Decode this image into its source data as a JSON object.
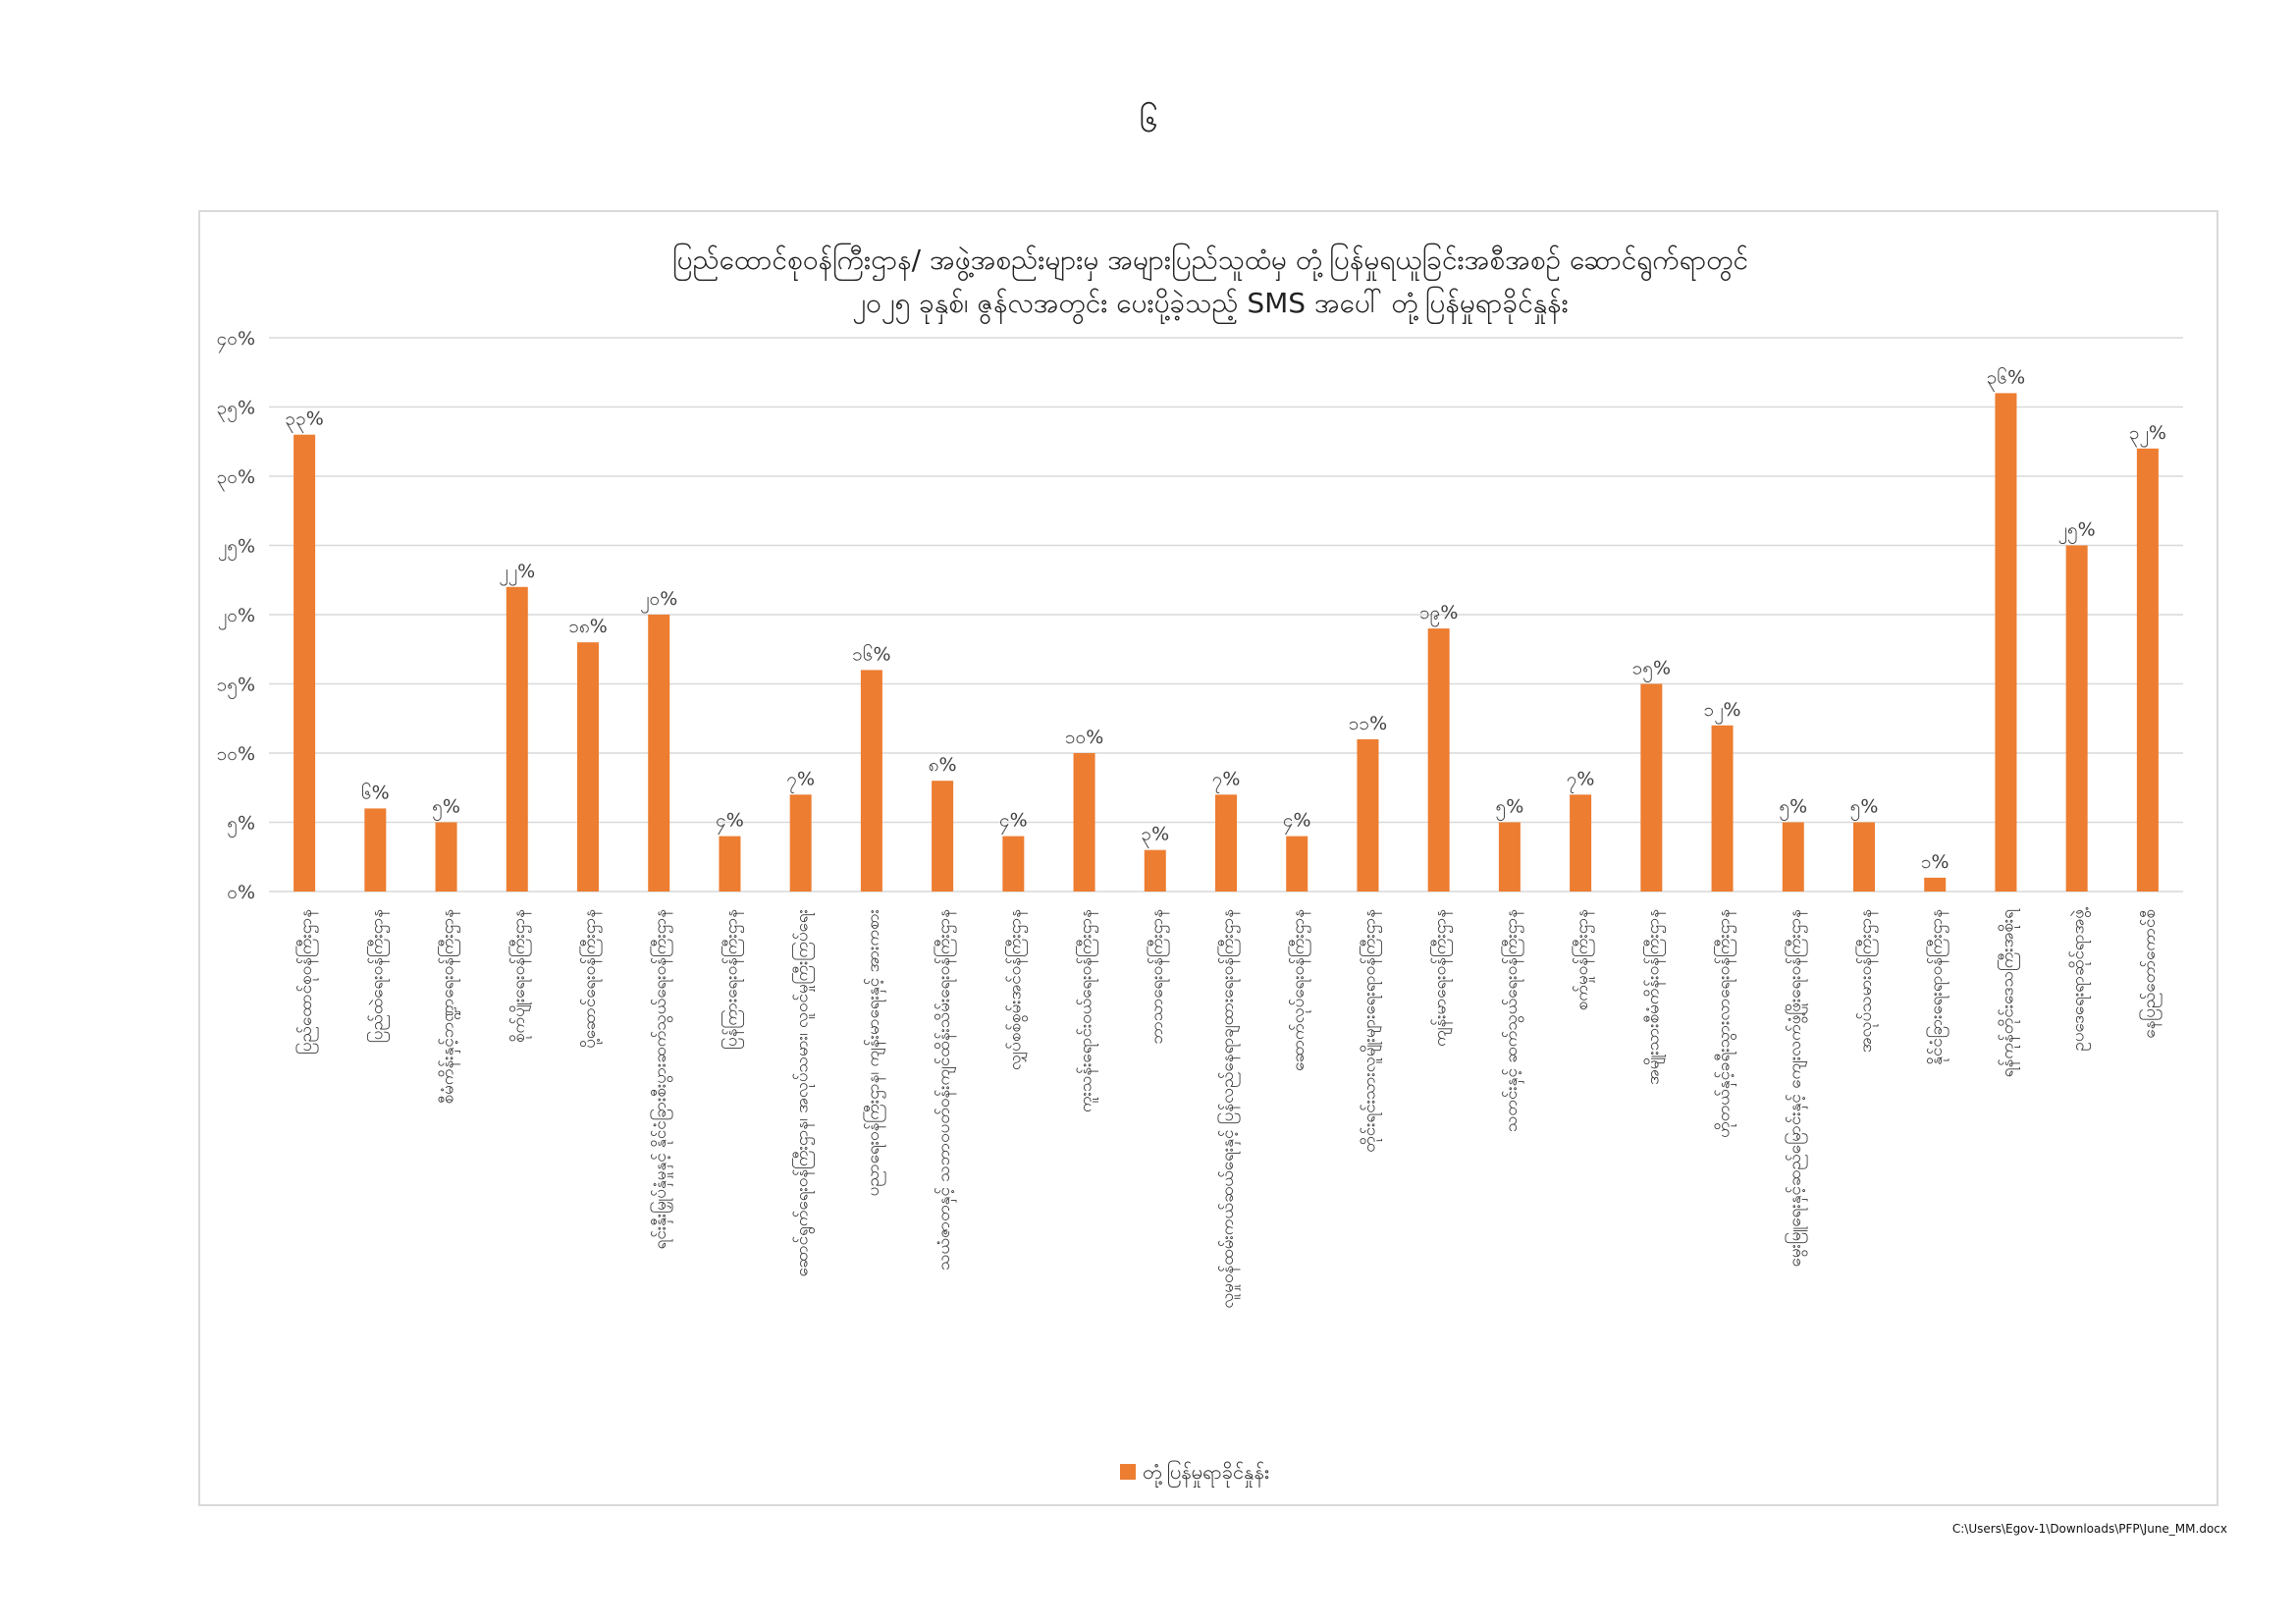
{
  "page": {
    "page_number": "၆",
    "footer_path": "C:\\Users\\Egov-1\\Downloads\\PFP\\June_MM.docx"
  },
  "chart_data": {
    "type": "bar",
    "title_line1": "ပြည်ထောင်စုဝန်ကြီးဌာန/ အဖွဲ့အစည်းများမှ အများပြည်သူထံမှ တုံ့ပြန်မှုရယူခြင်းအစီအစဉ် ဆောင်ရွက်ရာတွင်",
    "title_line2": "၂၀၂၅ ခုနှစ်၊ ဇွန်လအတွင်း ပေးပို့ခဲ့သည့် SMS အပေါ် တုံ့ပြန်မှုရာခိုင်နှုန်း",
    "ylim": [
      0,
      40
    ],
    "yticks": [
      0,
      5,
      10,
      15,
      20,
      25,
      30,
      35,
      40
    ],
    "ytick_labels": [
      "၀%",
      "၅%",
      "၁၀%",
      "၁၅%",
      "၂၀%",
      "၂၅%",
      "၃၀%",
      "၃၅%",
      "၄၀%"
    ],
    "grid": true,
    "legend_position": "bottom",
    "bar_color": "#ED7D31",
    "series": [
      {
        "name": "တုံ့ပြန်မှုရာခိုင်နှုန်း",
        "values": [
          33,
          6,
          5,
          22,
          18,
          20,
          4,
          7,
          16,
          8,
          4,
          10,
          3,
          7,
          4,
          11,
          19,
          5,
          7,
          15,
          12,
          5,
          5,
          1,
          36,
          25,
          32
        ],
        "value_labels": [
          "၃၃%",
          "၆%",
          "၅%",
          "၂၂%",
          "၁၈%",
          "၂၀%",
          "၄%",
          "၇%",
          "၁၆%",
          "၈%",
          "၄%",
          "၁၀%",
          "၃%",
          "၇%",
          "၄%",
          "၁၁%",
          "၁၉%",
          "၅%",
          "၇%",
          "၁၅%",
          "၁၂%",
          "၅%",
          "၅%",
          "၁%",
          "၃၆%",
          "၂၅%",
          "၃၂%"
        ]
      }
    ],
    "categories": [
      "ပြည်ထောင်စုဝန်ကြီးဌာန",
      "ပြည်ထဲရေးဝန်ကြီးဌာန",
      "စီမံကိန်းနှင့်ဘဏ္ဍာရေးဝန်ကြီးဌာန",
      "စိုက်ပျိုးရေးဝန်ကြီးဌာန",
      "ပို့ဆောင်ရေးဝန်ကြီးဌာန",
      "ရင်းနှီးမြှုပ်နှံမှုနှင့် နိုင်ငံခြားစီးပွားဆက်သွယ်ရေးဝန်ကြီးဌာန",
      "ပြန်ကြားရေးဝန်ကြီးဌာန",
      "ဆောင်ရွက်ရေးဝန်ကြီးဌာန၊ အလုပ်သမား၊ လူဝင်မှုကြီးကြပ်ရေး",
      "ပညာရေးဝန်ကြီးဌာန၊ ကျန်းမာရေးနှင့် အားကစား",
      "သယံဇာတနှင့် သဘာဝပတ်ဝန်းကျင်ထိန်းသိမ်းရေးဝန်ကြီးဌာန",
      "လျှပ်စစ်စွမ်းအင်ဝန်ကြီးဌာန",
      "ကူးသန်းရောင်းဝယ်ရေးဝန်ကြီးဌာန",
      "ဘာသာရေးဝန်ကြီးဌာန",
      "လူမှုဝန်ထမ်းကယ်ဆယ်ရေးနှင့် ပြန်လည်နေရာချထားရေးဝန်ကြီးဌာန",
      "ဆောက်လုပ်ရေးဝန်ကြီးဌာန",
      "တိုင်းရင်းသားလူမျိုးများရေးရာဝန်ကြီးဌာန",
      "ကျန်းမာရေးဝန်ကြီးဌာန",
      "သတင်းနှင့် ဆက်သွယ်ရေးဝန်ကြီးဌာန",
      "စက်မှုဝန်ကြီးဌာန",
      "အမျိုးသားစီမံကိန်းဝန်ကြီးဌာန",
      "ဟိုတယ်နှင့်ခရီးသွားလာရေးဝန်ကြီးဌာန",
      "မွေးမြူရေးနှင့်ဆည်မြောင်းနှင့် ကျေးလက်ဖွံ့ဖြိုးရေးဝန်ကြီးဌာန",
      "အလုပ်သမားဝန်ကြီးဌာန",
      "နိုင်ငံခြားရေးရာဝန်ကြီးဌာန",
      "ရန်ကုန်တိုင်းဒေသကြီးအစိုးရ",
      "ဥပဒေရေးရာဆိုင်ရာအဖွဲ့",
      "နေပြည်တော်ကောင်စီ"
    ]
  }
}
